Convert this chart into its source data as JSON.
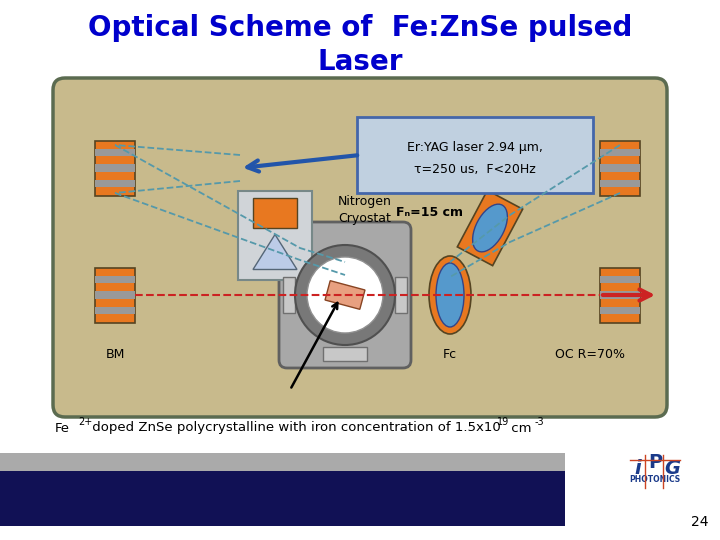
{
  "title_line1": "Optical Scheme of  Fe:ZnSe pulsed",
  "title_line2": "Laser",
  "title_color": "#0000CC",
  "title_fontsize": 20,
  "bg_color": "#ffffff",
  "diagram_bg": "#C8BA8C",
  "diagram_border": "#6B7B5E",
  "er_yag_box_text1": "Er:YAG laser 2.94 μm,",
  "er_yag_box_text2": "τ=250 us,  F<20Hz",
  "label_BM": "BM",
  "label_Fc": "Fᴄ",
  "label_OC": "OC R=70%",
  "label_Fp": "Fₙ=15 cm",
  "label_N2": "Nitrogen\nCryostat",
  "footnote1": "Fe",
  "footnote2": "2+",
  "footnote3": " doped ZnSe polycrystalline with iron concentration of 1.5x10",
  "footnote4": "19",
  "footnote5": " cm",
  "footnote6": "-3",
  "orange_color": "#E87820",
  "orange_dark": "#C05800",
  "blue_lens": "#5599CC",
  "blue_arrow": "#2255AA",
  "dashed_color": "#5599AA",
  "red_color": "#CC2222",
  "gray_stripe": "#999999",
  "cryo_gray": "#B0B8C0",
  "page_number": "24"
}
